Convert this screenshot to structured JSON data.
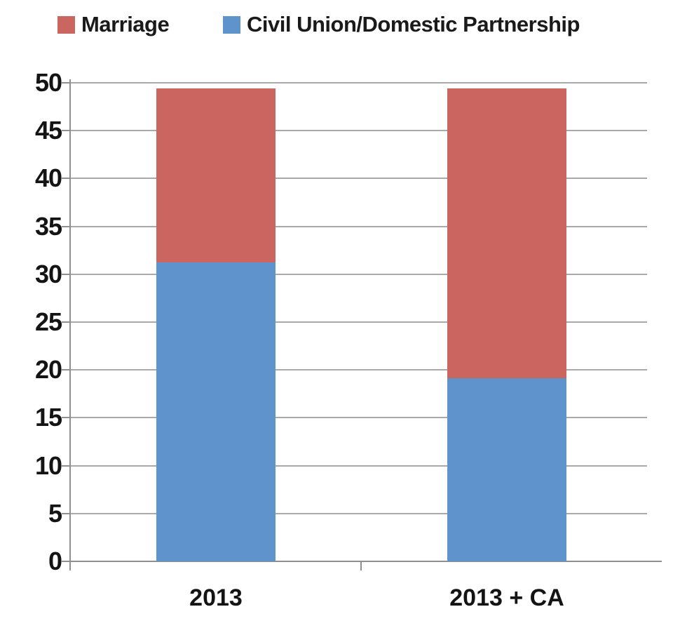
{
  "legend": {
    "items": [
      {
        "label": "Marriage",
        "color": "#cb655f"
      },
      {
        "label": "Civil Union/Domestic Partnership",
        "color": "#5e93cb"
      }
    ]
  },
  "chart_data": {
    "type": "bar",
    "stacked": true,
    "title": "",
    "xlabel": "",
    "ylabel": "",
    "categories": [
      "2013",
      "2013 + CA"
    ],
    "series": [
      {
        "name": "Civil Union/Domestic Partnership",
        "color": "#5e93cb",
        "values": [
          31.2,
          19.1
        ]
      },
      {
        "name": "Marriage",
        "color": "#cb655f",
        "values": [
          18.2,
          30.3
        ]
      }
    ],
    "totals": [
      49.4,
      49.4
    ],
    "ylim": [
      0,
      50
    ],
    "yticks": [
      0,
      5,
      10,
      15,
      20,
      25,
      30,
      35,
      40,
      45,
      50
    ],
    "grid": true,
    "legend_position": "top"
  },
  "colors": {
    "grid": "#a9a9a9",
    "axis": "#8f8f8f",
    "label_text": "#141414",
    "background": "#ffffff"
  }
}
